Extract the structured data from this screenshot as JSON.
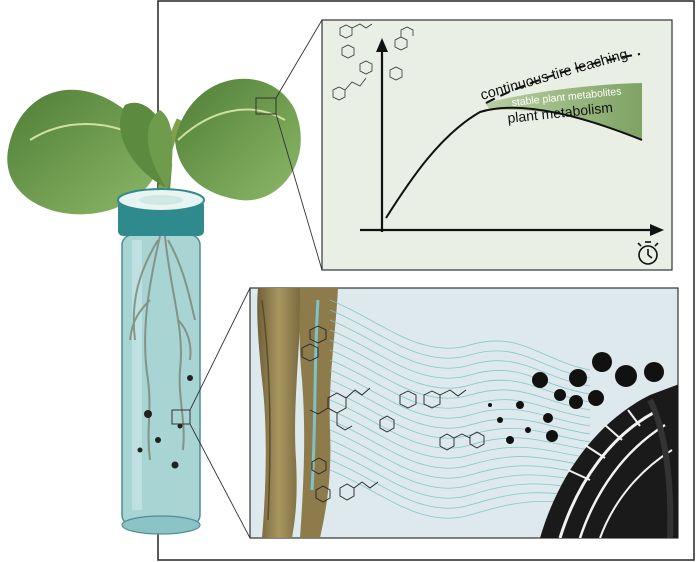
{
  "graph": {
    "curve_upper_label": "continuous tire leaching",
    "band_label": "stable plant metabolites",
    "curve_lower_label": "plant metabolism",
    "time_axis_icon": "stopwatch-icon"
  },
  "colors": {
    "panel_background": "#e9efe4",
    "zoom_background": "#dce8ea",
    "band_fill": "#8faf74",
    "leaf_dark": "#3f6e2c",
    "leaf_light": "#7fa85a",
    "tube_fill": "#a7d3d3",
    "tire": "#1a1a1a",
    "root": "#8a7a4e",
    "stream": "#7fc2c7"
  },
  "icons": [
    "seedling-icon",
    "test-tube-icon",
    "stopwatch-icon",
    "tire-icon",
    "molecule-icon"
  ]
}
